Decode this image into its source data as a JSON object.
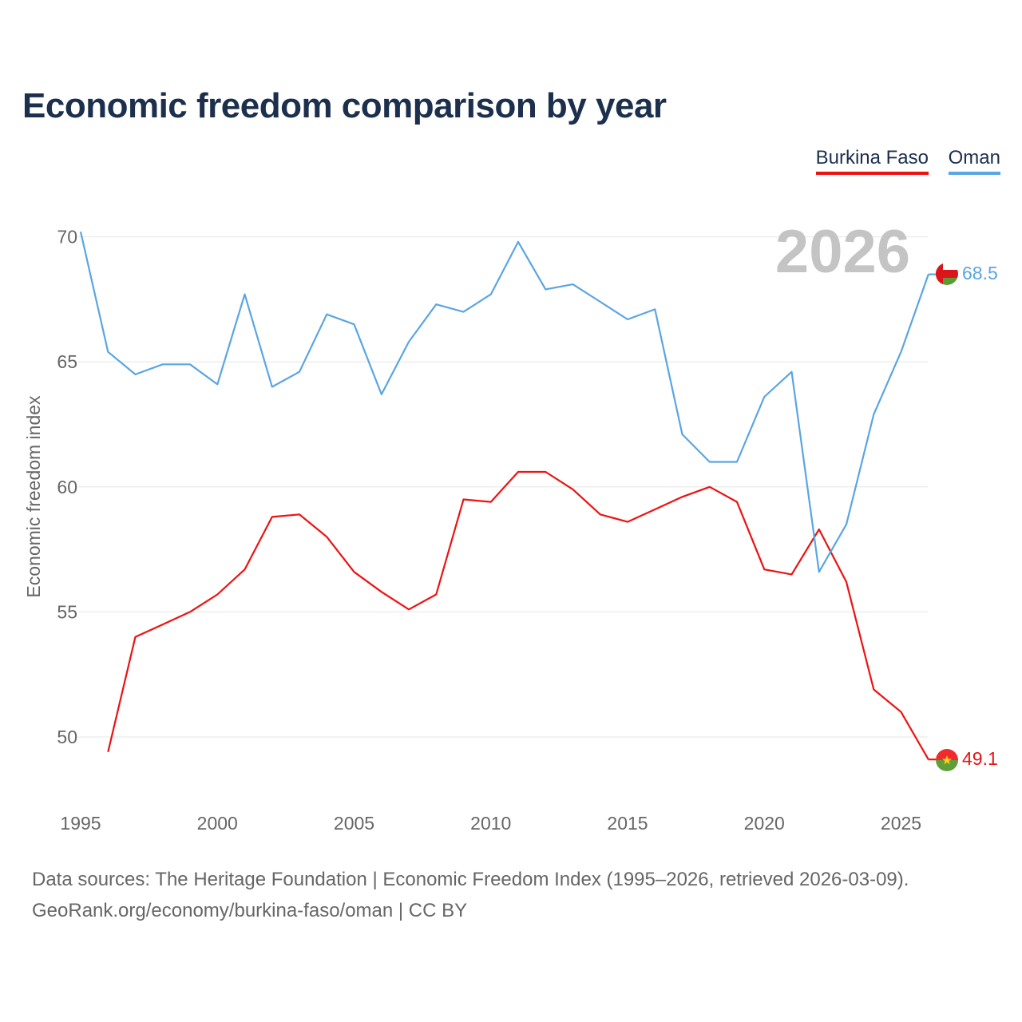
{
  "title": "Economic freedom comparison by year",
  "legend": {
    "series1": "Burkina Faso",
    "series2": "Oman"
  },
  "source": {
    "line1": "Data sources: The Heritage Foundation | Economic Freedom Index (1995–2026, retrieved 2026-03-09).",
    "line2": "GeoRank.org/economy/burkina-faso/oman | CC BY"
  },
  "colors": {
    "burkina_faso": "#ee1111",
    "oman": "#5aa5e3",
    "title": "#1c2f4d",
    "axis_text": "#666666",
    "grid": "#e6e6e6",
    "year_label": "#c4c4c4"
  },
  "chart_data": {
    "type": "line",
    "title": "Economic freedom comparison by year",
    "xlabel": "",
    "ylabel": "Economic freedom index",
    "xlim": [
      1995,
      2026
    ],
    "ylim": [
      47.5,
      71
    ],
    "xticks": [
      1995,
      2000,
      2005,
      2010,
      2015,
      2020,
      2025
    ],
    "yticks": [
      50,
      55,
      60,
      65,
      70
    ],
    "grid": true,
    "legend_position": "top-right",
    "year_label": "2026",
    "series": [
      {
        "name": "Burkina Faso",
        "x": [
          1996,
          1997,
          1998,
          1999,
          2000,
          2001,
          2002,
          2003,
          2004,
          2005,
          2006,
          2007,
          2008,
          2009,
          2010,
          2011,
          2012,
          2013,
          2014,
          2015,
          2016,
          2017,
          2018,
          2019,
          2020,
          2021,
          2022,
          2023,
          2024,
          2025,
          2026
        ],
        "values": [
          49.4,
          54.0,
          54.5,
          55.0,
          55.7,
          56.7,
          58.8,
          58.9,
          58.0,
          56.6,
          55.8,
          55.1,
          55.7,
          59.5,
          59.4,
          60.6,
          60.6,
          59.9,
          58.9,
          58.6,
          59.1,
          59.6,
          60.0,
          59.4,
          56.7,
          56.5,
          58.3,
          56.2,
          51.9,
          51.0,
          49.1
        ],
        "end_label": "49.1"
      },
      {
        "name": "Oman",
        "x": [
          1995,
          1996,
          1997,
          1998,
          1999,
          2000,
          2001,
          2002,
          2003,
          2004,
          2005,
          2006,
          2007,
          2008,
          2009,
          2010,
          2011,
          2012,
          2013,
          2014,
          2015,
          2016,
          2017,
          2018,
          2019,
          2020,
          2021,
          2022,
          2023,
          2024,
          2025,
          2026
        ],
        "values": [
          70.2,
          65.4,
          64.5,
          64.9,
          64.9,
          64.1,
          67.7,
          64.0,
          64.6,
          66.9,
          66.5,
          63.7,
          65.8,
          67.3,
          67.0,
          67.7,
          69.8,
          67.9,
          68.1,
          67.4,
          66.7,
          67.1,
          62.1,
          61.0,
          61.0,
          63.6,
          64.6,
          56.6,
          58.5,
          62.9,
          65.4,
          68.5
        ],
        "end_label": "68.5"
      }
    ]
  }
}
